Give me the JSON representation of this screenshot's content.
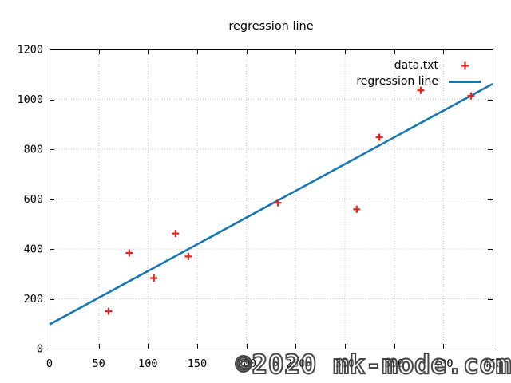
{
  "chart_data": {
    "type": "scatter",
    "title": "regression line",
    "xlabel": "",
    "ylabel": "",
    "xlim": [
      0,
      450
    ],
    "ylim": [
      0,
      1200
    ],
    "xticks": [
      0,
      50,
      100,
      150,
      200,
      250,
      300,
      350,
      400,
      450
    ],
    "yticks": [
      0,
      200,
      400,
      600,
      800,
      1000,
      1200
    ],
    "grid": true,
    "grid_color": "#c6c6c6",
    "axis_color": "#000000",
    "legend_position": "top-right-inside",
    "series": [
      {
        "name": "data.txt",
        "kind": "scatter",
        "marker": "plus",
        "color": "#e3231e",
        "points": [
          [
            60,
            150
          ],
          [
            81,
            384
          ],
          [
            106,
            283
          ],
          [
            128,
            462
          ],
          [
            141,
            370
          ],
          [
            232,
            585
          ],
          [
            312,
            559
          ],
          [
            335,
            848
          ],
          [
            377,
            1036
          ],
          [
            428,
            1014
          ]
        ]
      },
      {
        "name": "regression line",
        "kind": "line",
        "color": "#1777b6",
        "endpoints": [
          [
            0,
            97
          ],
          [
            450,
            1062
          ]
        ],
        "slope": 2.14,
        "intercept": 97
      }
    ]
  },
  "watermark": {
    "text": "©2020 mk-mode.com"
  }
}
